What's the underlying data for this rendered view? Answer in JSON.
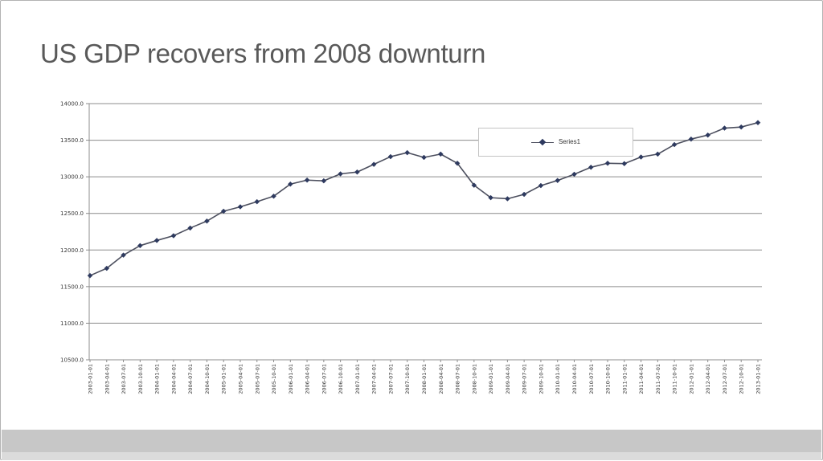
{
  "slide": {
    "title": "US GDP recovers from 2008 downturn"
  },
  "chart_data": {
    "type": "line",
    "title": "",
    "xlabel": "",
    "ylabel": "",
    "ylim": [
      10500,
      14000
    ],
    "ytick_step": 500,
    "yticks": [
      "14000.0",
      "13500.0",
      "13000.0",
      "12500.0",
      "12000.0",
      "11500.0",
      "11000.0",
      "10500.0"
    ],
    "grid": true,
    "legend_position": "inside-top-right",
    "marker": "diamond",
    "colors": {
      "line": "#4c4f5e",
      "marker": "#2e3a5f"
    },
    "x": [
      "2003-01-01",
      "2003-04-01",
      "2003-07-01",
      "2003-10-01",
      "2004-01-01",
      "2004-04-01",
      "2004-07-01",
      "2004-10-01",
      "2005-01-01",
      "2005-04-01",
      "2005-07-01",
      "2005-10-01",
      "2006-01-01",
      "2006-04-01",
      "2006-07-01",
      "2006-10-01",
      "2007-01-01",
      "2007-04-01",
      "2007-07-01",
      "2007-10-01",
      "2008-01-01",
      "2008-04-01",
      "2008-07-01",
      "2008-10-01",
      "2009-01-01",
      "2009-04-01",
      "2009-07-01",
      "2009-10-01",
      "2010-01-01",
      "2010-04-01",
      "2010-07-01",
      "2010-10-01",
      "2011-01-01",
      "2011-04-01",
      "2011-07-01",
      "2011-10-01",
      "2012-01-01",
      "2012-04-01",
      "2012-07-01",
      "2012-10-01",
      "2013-01-01"
    ],
    "series": [
      {
        "name": "Series1",
        "values": [
          11650,
          11750,
          11930,
          12060,
          12130,
          12195,
          12300,
          12395,
          12530,
          12590,
          12660,
          12735,
          12900,
          12955,
          12945,
          13040,
          13065,
          13170,
          13275,
          13330,
          13265,
          13310,
          13185,
          12885,
          12715,
          12700,
          12760,
          12880,
          12950,
          13035,
          13130,
          13185,
          13180,
          13270,
          13310,
          13440,
          13515,
          13570,
          13665,
          13680,
          13740
        ]
      }
    ]
  }
}
